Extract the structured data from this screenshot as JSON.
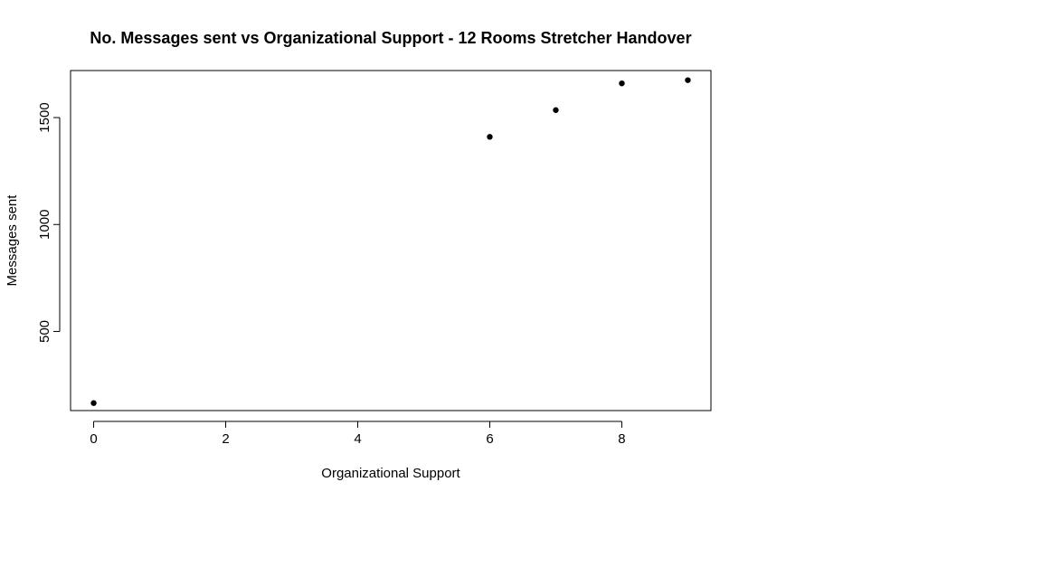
{
  "chart_data": {
    "type": "scatter",
    "title": "No. Messages sent vs Organizational Support - 12 Rooms Stretcher Handover",
    "xlabel": "Organizational Support",
    "ylabel": "Messages sent",
    "xlim": [
      -0.35,
      9.35
    ],
    "ylim": [
      130,
      1720
    ],
    "xticks": [
      0,
      2,
      4,
      6,
      8
    ],
    "xtick_labels": [
      "0",
      "2",
      "4",
      "6",
      "8"
    ],
    "yticks": [
      500,
      1000,
      1500
    ],
    "ytick_labels": [
      "500",
      "1000",
      "1500"
    ],
    "grid": false,
    "legend": "none",
    "point_color": "#000000",
    "points": [
      {
        "x": 0,
        "y": 165
      },
      {
        "x": 6,
        "y": 1410
      },
      {
        "x": 7,
        "y": 1535
      },
      {
        "x": 8,
        "y": 1660
      },
      {
        "x": 9,
        "y": 1675
      }
    ]
  }
}
